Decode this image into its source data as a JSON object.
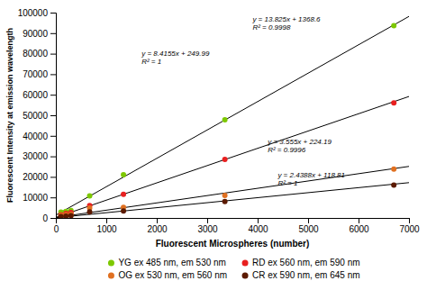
{
  "chart_data": {
    "type": "scatter",
    "x_label": "Fluorescent Microspheres (number)",
    "y_label": "Fluorescent Intensity at emission wavelength",
    "series": [
      {
        "name": "YG ex 485 nm, em 530 nm",
        "color": "#7dc800",
        "x": [
          100,
          200,
          300,
          670,
          1340,
          3350,
          6700
        ],
        "values": [
          2800,
          3200,
          3600,
          10800,
          21000,
          47800,
          93600
        ],
        "trend": {
          "color": "#000000",
          "x": [
            0,
            7000
          ],
          "values": [
            1368.6,
            98143.6
          ]
        }
      },
      {
        "name": "RD ex 560 nm, em 590 nm",
        "color": "#e82020",
        "x": [
          100,
          200,
          300,
          670,
          1340,
          3350,
          6700
        ],
        "values": [
          1500,
          2200,
          2600,
          6000,
          11500,
          28500,
          56000
        ],
        "trend": {
          "color": "#000000",
          "x": [
            0,
            7000
          ],
          "values": [
            249.99,
            59158.49
          ]
        }
      },
      {
        "name": "OG ex 530 nm, em 560 nm",
        "color": "#e07020",
        "x": [
          100,
          200,
          300,
          670,
          1340,
          3350,
          6700
        ],
        "values": [
          1200,
          1500,
          1800,
          4800,
          5200,
          11000,
          23800
        ],
        "trend": {
          "color": "#000000",
          "x": [
            0,
            7000
          ],
          "values": [
            224.19,
            25109.19
          ]
        }
      },
      {
        "name": "CR ex 590 nm, em 645 nm",
        "color": "#5c1a00",
        "x": [
          100,
          200,
          300,
          670,
          1340,
          3350,
          6700
        ],
        "values": [
          700,
          900,
          1100,
          3000,
          3400,
          8000,
          16000
        ],
        "trend": {
          "color": "#000000",
          "x": [
            0,
            7000
          ],
          "values": [
            118.81,
            17190.41
          ]
        }
      }
    ],
    "annotations": [
      {
        "text": "y = 13.825x + 1368.6\nR² = 0.9998",
        "x": 3900,
        "y": 91000
      },
      {
        "text": "y = 8.4155x + 249.99\nR² = 1",
        "x": 1700,
        "y": 74000
      },
      {
        "text": "y = 3.555x + 224.19\nR² = 0.9996",
        "x": 4200,
        "y": 31000
      },
      {
        "text": "y = 2.4388x + 118.81\nR² = 1",
        "x": 4400,
        "y": 15000
      }
    ],
    "xlim": [
      0,
      7000
    ],
    "ylim": [
      0,
      100000
    ],
    "xticks": [
      0,
      1000,
      2000,
      3000,
      4000,
      5000,
      6000,
      7000
    ],
    "yticks": [
      0,
      10000,
      20000,
      30000,
      40000,
      50000,
      60000,
      70000,
      80000,
      90000,
      100000
    ],
    "grid": false,
    "legend": "bottom"
  }
}
